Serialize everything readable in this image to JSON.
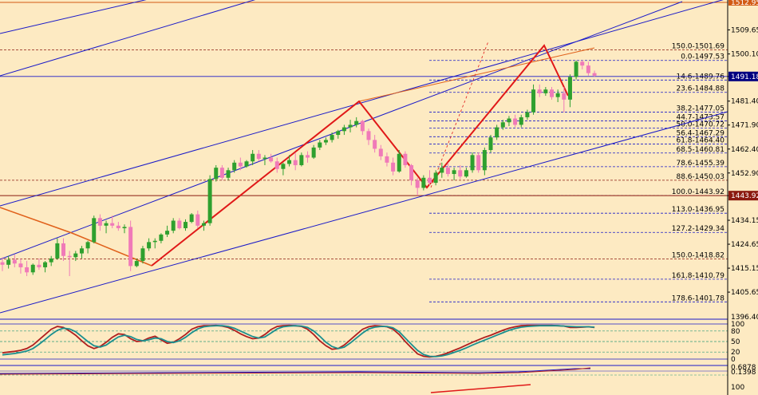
{
  "chart_data": {
    "type": "candlestick",
    "price_axis": {
      "ylim": [
        1393.5,
        1514.2
      ],
      "ticks": [
        "1509.65",
        "1500.10",
        "1491.18",
        "1481.40",
        "1471.90",
        "1462.40",
        "1452.90",
        "1443.92",
        "1434.15",
        "1424.65",
        "1415.15",
        "1405.65"
      ],
      "current_price": "1491.18",
      "current_color": "#000080",
      "level_1443": "1443.92",
      "level_1443_color": "#8b1a10",
      "top_label": "1512.95",
      "top_label_color": "#d25a14"
    },
    "fib_levels": [
      {
        "label": "150.0-1501.69",
        "price": 1501.69,
        "color": "#a0201a"
      },
      {
        "label": "0.0-1497.53",
        "price": 1497.53,
        "color": "#000000"
      },
      {
        "label": "14.6-1489.76",
        "price": 1489.76,
        "color": "#000000"
      },
      {
        "label": "23.6-1484.88",
        "price": 1484.88,
        "color": "#000000"
      },
      {
        "label": "38.2-1477.05",
        "price": 1477.05,
        "color": "#000000"
      },
      {
        "label": "44.7-1473.57",
        "price": 1473.57,
        "color": "#000000"
      },
      {
        "label": "50.0-1470.72",
        "price": 1470.72,
        "color": "#000000"
      },
      {
        "label": "56.4-1467.29",
        "price": 1467.29,
        "color": "#000000"
      },
      {
        "label": "61.8-1464.40",
        "price": 1464.4,
        "color": "#000000"
      },
      {
        "label": "68.5-1460.81",
        "price": 1460.81,
        "color": "#000000"
      },
      {
        "label": "78.6-1455.39",
        "price": 1455.39,
        "color": "#000000"
      },
      {
        "label": "88.6-1450.03",
        "price": 1450.03,
        "color": "#a0201a"
      },
      {
        "label": "100.0-1443.92",
        "price": 1443.92,
        "color": "#000000"
      },
      {
        "label": "113.0-1436.95",
        "price": 1436.95,
        "color": "#000000"
      },
      {
        "label": "127.2-1429.34",
        "price": 1429.34,
        "color": "#000000"
      },
      {
        "label": "150.0-1418.82",
        "price": 1418.82,
        "color": "#a0201a"
      },
      {
        "label": "161.8-1410.79",
        "price": 1410.79,
        "color": "#000000"
      },
      {
        "label": "178.6-1401.78",
        "price": 1401.78,
        "color": "#000000"
      }
    ],
    "candles": [
      {
        "o": 1417.5,
        "h": 1419.5,
        "l": 1414,
        "c": 1416.5
      },
      {
        "o": 1416.5,
        "h": 1420,
        "l": 1415,
        "c": 1418.5
      },
      {
        "o": 1418.5,
        "h": 1420.5,
        "l": 1415.5,
        "c": 1417
      },
      {
        "o": 1417,
        "h": 1419,
        "l": 1413,
        "c": 1415.5
      },
      {
        "o": 1415.5,
        "h": 1418,
        "l": 1412,
        "c": 1413.5
      },
      {
        "o": 1413.5,
        "h": 1417,
        "l": 1412.5,
        "c": 1416.5
      },
      {
        "o": 1416.5,
        "h": 1419,
        "l": 1414.5,
        "c": 1415.5
      },
      {
        "o": 1415.5,
        "h": 1418,
        "l": 1413.5,
        "c": 1417.5
      },
      {
        "o": 1417.5,
        "h": 1420,
        "l": 1416,
        "c": 1419
      },
      {
        "o": 1419,
        "h": 1427,
        "l": 1418.5,
        "c": 1425
      },
      {
        "o": 1425,
        "h": 1427,
        "l": 1418,
        "c": 1420
      },
      {
        "o": 1420,
        "h": 1422,
        "l": 1412,
        "c": 1419.5
      },
      {
        "o": 1419.5,
        "h": 1422,
        "l": 1418,
        "c": 1421
      },
      {
        "o": 1421,
        "h": 1424,
        "l": 1419,
        "c": 1423
      },
      {
        "o": 1423,
        "h": 1426,
        "l": 1421,
        "c": 1425.5
      },
      {
        "o": 1425.5,
        "h": 1436,
        "l": 1425,
        "c": 1435
      },
      {
        "o": 1435,
        "h": 1436.5,
        "l": 1430,
        "c": 1432
      },
      {
        "o": 1432,
        "h": 1434,
        "l": 1429,
        "c": 1433
      },
      {
        "o": 1433,
        "h": 1436,
        "l": 1431,
        "c": 1432
      },
      {
        "o": 1432,
        "h": 1433.5,
        "l": 1430,
        "c": 1431
      },
      {
        "o": 1431,
        "h": 1432.5,
        "l": 1429,
        "c": 1431.5
      },
      {
        "o": 1431.5,
        "h": 1434,
        "l": 1414,
        "c": 1416
      },
      {
        "o": 1416,
        "h": 1419,
        "l": 1415.5,
        "c": 1418
      },
      {
        "o": 1418,
        "h": 1424,
        "l": 1417,
        "c": 1423
      },
      {
        "o": 1423,
        "h": 1427,
        "l": 1422,
        "c": 1425.5
      },
      {
        "o": 1425.5,
        "h": 1427,
        "l": 1423,
        "c": 1426
      },
      {
        "o": 1426,
        "h": 1429,
        "l": 1425,
        "c": 1428.5
      },
      {
        "o": 1428.5,
        "h": 1432,
        "l": 1427.5,
        "c": 1430
      },
      {
        "o": 1430,
        "h": 1435,
        "l": 1429,
        "c": 1434
      },
      {
        "o": 1434,
        "h": 1435,
        "l": 1430.5,
        "c": 1431
      },
      {
        "o": 1431,
        "h": 1434.5,
        "l": 1430,
        "c": 1433.5
      },
      {
        "o": 1433.5,
        "h": 1437,
        "l": 1433,
        "c": 1436.5
      },
      {
        "o": 1436.5,
        "h": 1438,
        "l": 1431,
        "c": 1432
      },
      {
        "o": 1432,
        "h": 1434,
        "l": 1430,
        "c": 1433
      },
      {
        "o": 1433,
        "h": 1452,
        "l": 1432,
        "c": 1450.5
      },
      {
        "o": 1450.5,
        "h": 1456,
        "l": 1449.5,
        "c": 1455
      },
      {
        "o": 1455,
        "h": 1456,
        "l": 1450,
        "c": 1451
      },
      {
        "o": 1451,
        "h": 1455,
        "l": 1450,
        "c": 1454
      },
      {
        "o": 1454,
        "h": 1458,
        "l": 1453,
        "c": 1457
      },
      {
        "o": 1457,
        "h": 1459,
        "l": 1454,
        "c": 1455.5
      },
      {
        "o": 1455.5,
        "h": 1458,
        "l": 1455,
        "c": 1457.5
      },
      {
        "o": 1457.5,
        "h": 1462,
        "l": 1456,
        "c": 1460.5
      },
      {
        "o": 1460.5,
        "h": 1462,
        "l": 1457.5,
        "c": 1458.5
      },
      {
        "o": 1458.5,
        "h": 1460,
        "l": 1456,
        "c": 1459
      },
      {
        "o": 1459,
        "h": 1460.5,
        "l": 1457,
        "c": 1457.5
      },
      {
        "o": 1457.5,
        "h": 1459,
        "l": 1453,
        "c": 1454.5
      },
      {
        "o": 1454.5,
        "h": 1457,
        "l": 1452,
        "c": 1456.5
      },
      {
        "o": 1456.5,
        "h": 1460,
        "l": 1455.5,
        "c": 1458
      },
      {
        "o": 1458,
        "h": 1461,
        "l": 1454,
        "c": 1456
      },
      {
        "o": 1456,
        "h": 1461,
        "l": 1455.5,
        "c": 1460
      },
      {
        "o": 1460,
        "h": 1461.5,
        "l": 1457,
        "c": 1459
      },
      {
        "o": 1459,
        "h": 1464,
        "l": 1458.5,
        "c": 1463
      },
      {
        "o": 1463,
        "h": 1466,
        "l": 1462,
        "c": 1465
      },
      {
        "o": 1465,
        "h": 1467,
        "l": 1464,
        "c": 1466
      },
      {
        "o": 1466,
        "h": 1469,
        "l": 1465,
        "c": 1468
      },
      {
        "o": 1468,
        "h": 1470,
        "l": 1466.5,
        "c": 1469.5
      },
      {
        "o": 1469.5,
        "h": 1472,
        "l": 1468,
        "c": 1471
      },
      {
        "o": 1471,
        "h": 1474,
        "l": 1469,
        "c": 1472
      },
      {
        "o": 1472,
        "h": 1475,
        "l": 1471,
        "c": 1473.5
      },
      {
        "o": 1473.5,
        "h": 1474,
        "l": 1468,
        "c": 1469.5
      },
      {
        "o": 1469.5,
        "h": 1470.5,
        "l": 1464,
        "c": 1466
      },
      {
        "o": 1466,
        "h": 1468,
        "l": 1461,
        "c": 1462.5
      },
      {
        "o": 1462.5,
        "h": 1464,
        "l": 1458,
        "c": 1459.5
      },
      {
        "o": 1459.5,
        "h": 1461,
        "l": 1455.5,
        "c": 1457
      },
      {
        "o": 1457,
        "h": 1459,
        "l": 1452,
        "c": 1453.5
      },
      {
        "o": 1453.5,
        "h": 1462,
        "l": 1453,
        "c": 1460.5
      },
      {
        "o": 1460.5,
        "h": 1461.5,
        "l": 1455,
        "c": 1456
      },
      {
        "o": 1456,
        "h": 1456.5,
        "l": 1448,
        "c": 1450
      },
      {
        "o": 1450,
        "h": 1451,
        "l": 1444,
        "c": 1447
      },
      {
        "o": 1447,
        "h": 1452,
        "l": 1446,
        "c": 1451
      },
      {
        "o": 1451,
        "h": 1454,
        "l": 1448,
        "c": 1449
      },
      {
        "o": 1449,
        "h": 1454,
        "l": 1448,
        "c": 1453
      },
      {
        "o": 1453,
        "h": 1457,
        "l": 1451,
        "c": 1455
      },
      {
        "o": 1455,
        "h": 1457,
        "l": 1451.5,
        "c": 1452.5
      },
      {
        "o": 1452.5,
        "h": 1455,
        "l": 1450,
        "c": 1454
      },
      {
        "o": 1454,
        "h": 1456,
        "l": 1450.5,
        "c": 1451.5
      },
      {
        "o": 1451.5,
        "h": 1455,
        "l": 1451,
        "c": 1454
      },
      {
        "o": 1454,
        "h": 1461,
        "l": 1453,
        "c": 1460
      },
      {
        "o": 1460,
        "h": 1461,
        "l": 1453,
        "c": 1454
      },
      {
        "o": 1454,
        "h": 1463,
        "l": 1452,
        "c": 1462
      },
      {
        "o": 1462,
        "h": 1468,
        "l": 1461,
        "c": 1467
      },
      {
        "o": 1467,
        "h": 1472,
        "l": 1466,
        "c": 1471
      },
      {
        "o": 1471,
        "h": 1474,
        "l": 1470,
        "c": 1473
      },
      {
        "o": 1473,
        "h": 1475.5,
        "l": 1471.5,
        "c": 1474.5
      },
      {
        "o": 1474.5,
        "h": 1476,
        "l": 1471,
        "c": 1472
      },
      {
        "o": 1472,
        "h": 1476,
        "l": 1471,
        "c": 1475
      },
      {
        "o": 1475,
        "h": 1478,
        "l": 1474,
        "c": 1477
      },
      {
        "o": 1477,
        "h": 1488,
        "l": 1476,
        "c": 1486
      },
      {
        "o": 1486,
        "h": 1488,
        "l": 1483,
        "c": 1484.5
      },
      {
        "o": 1484.5,
        "h": 1487,
        "l": 1483.5,
        "c": 1486
      },
      {
        "o": 1486,
        "h": 1487,
        "l": 1482,
        "c": 1483
      },
      {
        "o": 1483,
        "h": 1486,
        "l": 1481,
        "c": 1484.5
      },
      {
        "o": 1484.5,
        "h": 1487,
        "l": 1477,
        "c": 1482
      },
      {
        "o": 1482,
        "h": 1492,
        "l": 1479,
        "c": 1491
      },
      {
        "o": 1491,
        "h": 1497.5,
        "l": 1490,
        "c": 1497
      },
      {
        "o": 1497,
        "h": 1497.6,
        "l": 1494,
        "c": 1495.5
      },
      {
        "o": 1495.5,
        "h": 1497,
        "l": 1491.5,
        "c": 1492.5
      },
      {
        "o": 1492.5,
        "h": 1493.5,
        "l": 1491,
        "c": 1491.5
      }
    ],
    "candle_colors": {
      "up": "#2ea02e",
      "down": "#f07ab8"
    },
    "drawings": {
      "zigzag_color": "#e01818",
      "channel_color": "#1a1ac8",
      "trend_color": "#e0601a"
    },
    "oscillator": {
      "ticks": [
        "100",
        "80",
        "50",
        "20",
        "0"
      ],
      "levels": [
        100,
        80,
        50,
        20,
        0
      ],
      "series": [
        {
          "values": [
            18,
            20,
            22,
            25,
            30,
            40,
            55,
            70,
            85,
            93,
            90,
            80,
            68,
            52,
            38,
            30,
            36,
            48,
            62,
            72,
            70,
            58,
            50,
            52,
            60,
            65,
            55,
            45,
            48,
            58,
            70,
            85,
            92,
            95,
            95,
            96,
            94,
            90,
            82,
            72,
            64,
            58,
            60,
            70,
            84,
            93,
            95,
            96,
            95,
            93,
            85,
            70,
            52,
            38,
            28,
            30,
            40,
            55,
            70,
            85,
            92,
            95,
            94,
            92,
            85,
            70,
            50,
            32,
            15,
            8,
            6,
            8,
            12,
            18,
            25,
            32,
            40,
            48,
            55,
            62,
            68,
            75,
            82,
            88,
            92,
            95,
            96,
            96,
            96,
            96,
            96,
            95,
            94,
            90,
            90,
            91,
            92,
            90
          ],
          "color": "#b01e1e"
        },
        {
          "values": [
            12,
            14,
            16,
            19,
            23,
            30,
            42,
            56,
            70,
            82,
            88,
            86,
            78,
            64,
            50,
            38,
            34,
            40,
            52,
            63,
            68,
            64,
            56,
            52,
            55,
            60,
            58,
            50,
            47,
            52,
            62,
            75,
            86,
            92,
            94,
            95,
            95,
            93,
            88,
            80,
            72,
            64,
            60,
            63,
            74,
            86,
            92,
            94,
            95,
            94,
            90,
            80,
            65,
            48,
            36,
            30,
            34,
            46,
            60,
            74,
            86,
            91,
            93,
            93,
            89,
            78,
            60,
            42,
            25,
            13,
            8,
            7,
            9,
            13,
            19,
            25,
            32,
            40,
            47,
            54,
            61,
            68,
            75,
            82,
            87,
            91,
            93,
            94,
            95,
            95,
            95,
            95,
            94,
            93,
            92,
            92,
            92,
            91
          ],
          "color": "#1a8f8f"
        }
      ]
    },
    "bottom_panel": {
      "ticks": [
        "100"
      ],
      "top_labels": [
        "0.6878",
        "0.1398"
      ]
    }
  }
}
